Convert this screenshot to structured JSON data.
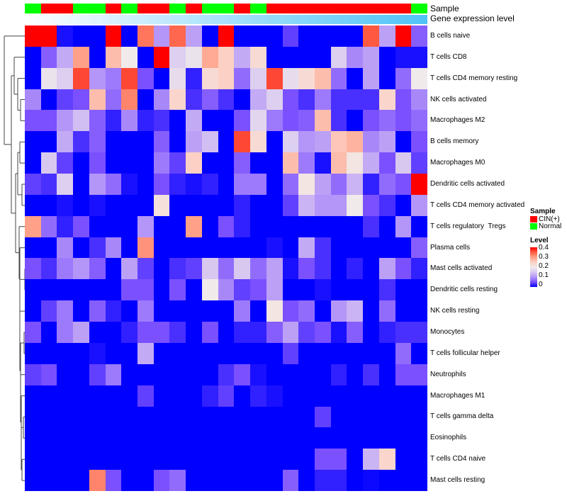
{
  "chart_data": {
    "type": "heatmap",
    "annotations": {
      "sample_label": "Sample",
      "gene_label": "Gene expression level",
      "sample": [
        "Normal",
        "CIN(+)",
        "CIN(+)",
        "Normal",
        "Normal",
        "CIN(+)",
        "Normal",
        "CIN(+)",
        "CIN(+)",
        "Normal",
        "CIN(+)",
        "Normal",
        "Normal",
        "CIN(+)",
        "Normal",
        "CIN(+)",
        "CIN(+)",
        "CIN(+)",
        "CIN(+)",
        "CIN(+)",
        "CIN(+)",
        "CIN(+)",
        "CIN(+)",
        "CIN(+)",
        "Normal"
      ]
    },
    "rows": [
      "B cells naive",
      "T cells CD8",
      "T cells CD4 memory resting",
      "NK cells activated",
      "Macrophages M2",
      "B cells memory",
      "Macrophages M0",
      "Dendritic cells activated",
      "T cells CD4 memory activated",
      "T cells regulatory  Tregs",
      "Plasma cells",
      "Mast cells activated",
      "Dendritic cells resting",
      "NK cells resting",
      "Monocytes",
      "T cells follicular helper",
      "Neutrophils",
      "Macrophages M1",
      "T cells gamma delta",
      "Eosinophils",
      "T cells CD4 naive",
      "Mast cells resting"
    ],
    "values": [
      [
        0.4,
        0.4,
        0.01,
        0,
        0,
        0.4,
        0,
        0.33,
        0.1,
        0.34,
        0.11,
        0,
        0.4,
        0,
        0,
        0,
        0.04,
        0,
        0,
        0,
        0,
        0.35,
        0.11,
        0.4,
        0.06
      ],
      [
        0,
        0.06,
        0.12,
        0.3,
        0,
        0.27,
        0.2,
        0,
        0.4,
        0.16,
        0.19,
        0.29,
        0.25,
        0.12,
        0.23,
        0,
        0,
        0,
        0,
        0.16,
        0.09,
        0.11,
        0,
        0.01,
        0.01
      ],
      [
        0,
        0.19,
        0.16,
        0.36,
        0.1,
        0.08,
        0.36,
        0.05,
        0,
        0.18,
        0.02,
        0.23,
        0.25,
        0.07,
        0.16,
        0.36,
        0.18,
        0.23,
        0.27,
        0.07,
        0,
        0.11,
        0,
        0.07,
        0.2
      ],
      [
        0.09,
        0,
        0.04,
        0.05,
        0.27,
        0.07,
        0.32,
        0,
        0.09,
        0.24,
        0.03,
        0.06,
        0.03,
        0,
        0.12,
        0.16,
        0.05,
        0.03,
        0.08,
        0.03,
        0.03,
        0.03,
        0.24,
        0.05,
        0.09
      ],
      [
        0.05,
        0.05,
        0.1,
        0.14,
        0.06,
        0.02,
        0.09,
        0.02,
        0.03,
        0,
        0.12,
        0,
        0,
        0.05,
        0.17,
        0.08,
        0.05,
        0.06,
        0.27,
        0.03,
        0,
        0.05,
        0.07,
        0.05,
        0.07
      ],
      [
        0,
        0,
        0.12,
        0.03,
        0.06,
        0,
        0,
        0,
        0.06,
        0,
        0.11,
        0.14,
        0,
        0.36,
        0.23,
        0,
        0.16,
        0.1,
        0.11,
        0.26,
        0.28,
        0.09,
        0.11,
        0,
        0.05
      ],
      [
        0,
        0.15,
        0.04,
        0,
        0.05,
        0,
        0,
        0,
        0.08,
        0.04,
        0.25,
        0,
        0,
        0.06,
        0,
        0,
        0.27,
        0.08,
        0.01,
        0.27,
        0.21,
        0.12,
        0.05,
        0.15,
        0.04
      ],
      [
        0.04,
        0.03,
        0.16,
        0,
        0.1,
        0.07,
        0.01,
        0,
        0.05,
        0.02,
        0.01,
        0.02,
        0,
        0.08,
        0.08,
        0,
        0.07,
        0.21,
        0.11,
        0.07,
        0.13,
        0.02,
        0.07,
        0.05,
        0.4
      ],
      [
        0,
        0,
        0.01,
        0,
        0.01,
        0,
        0,
        0,
        0.22,
        0,
        0,
        0,
        0,
        0.02,
        0,
        0,
        0.04,
        0.13,
        0.1,
        0.1,
        0.2,
        0.05,
        0.03,
        0,
        0.1
      ],
      [
        0.3,
        0.07,
        0.02,
        0.05,
        0,
        0,
        0,
        0.1,
        0,
        0,
        0.3,
        0,
        0.05,
        0.02,
        0,
        0,
        0,
        0,
        0,
        0,
        0,
        0.03,
        0,
        0.1,
        0
      ],
      [
        0,
        0,
        0.09,
        0,
        0.03,
        0.09,
        0,
        0.31,
        0,
        0,
        0,
        0,
        0,
        0,
        0,
        0.01,
        0,
        0.12,
        0.03,
        0,
        0,
        0,
        0,
        0,
        0.06
      ],
      [
        0.05,
        0.03,
        0.08,
        0.1,
        0.06,
        0,
        0.11,
        0.04,
        0,
        0.03,
        0.04,
        0.15,
        0.07,
        0.15,
        0.07,
        0.11,
        0.01,
        0.05,
        0.03,
        0,
        0.02,
        0,
        0.11,
        0.05,
        0.02
      ],
      [
        0,
        0,
        0,
        0,
        0,
        0,
        0.05,
        0.05,
        0,
        0.05,
        0,
        0.2,
        0.09,
        0.04,
        0.05,
        0.11,
        0,
        0,
        0.01,
        0,
        0,
        0,
        0.03,
        0,
        0
      ],
      [
        0,
        0.04,
        0.08,
        0,
        0.06,
        0.02,
        0,
        0.08,
        0,
        0,
        0,
        0,
        0,
        0.08,
        0,
        0.21,
        0.05,
        0.07,
        0,
        0.1,
        0.13,
        0,
        0.07,
        0,
        0
      ],
      [
        0.05,
        0,
        0.08,
        0.11,
        0,
        0,
        0.02,
        0.05,
        0.05,
        0.03,
        0,
        0.05,
        0,
        0.02,
        0.02,
        0.06,
        0.11,
        0.04,
        0.05,
        0.01,
        0.06,
        0,
        0.02,
        0.03,
        0.03
      ],
      [
        0,
        0,
        0,
        0,
        0.01,
        0,
        0,
        0.12,
        0,
        0,
        0,
        0,
        0,
        0,
        0,
        0,
        0.04,
        0,
        0,
        0,
        0,
        0,
        0,
        0.07,
        0
      ],
      [
        0.04,
        0.05,
        0,
        0,
        0.04,
        0.08,
        0,
        0,
        0,
        0,
        0,
        0,
        0.03,
        0.05,
        0.01,
        0,
        0,
        0,
        0,
        0.02,
        0,
        0.03,
        0,
        0.05,
        0.05
      ],
      [
        0,
        0,
        0,
        0,
        0,
        0,
        0,
        0.04,
        0,
        0,
        0,
        0.02,
        0.04,
        0,
        0.02,
        0.01,
        0,
        0,
        0,
        0,
        0,
        0,
        0,
        0,
        0
      ],
      [
        0,
        0,
        0,
        0,
        0,
        0,
        0,
        0,
        0,
        0,
        0,
        0,
        0,
        0,
        0,
        0,
        0,
        0,
        0.04,
        0,
        0,
        0,
        0,
        0,
        0
      ],
      [
        0,
        0,
        0,
        0,
        0,
        0,
        0,
        0,
        0,
        0,
        0,
        0,
        0,
        0,
        0,
        0,
        0,
        0,
        0,
        0,
        0,
        0,
        0,
        0,
        0
      ],
      [
        0,
        0,
        0,
        0,
        0,
        0,
        0,
        0,
        0,
        0,
        0,
        0,
        0,
        0,
        0,
        0,
        0,
        0,
        0.05,
        0.05,
        0,
        0.13,
        0.24,
        0,
        0
      ],
      [
        0,
        0,
        0,
        0,
        0.32,
        0.05,
        0,
        0,
        0.05,
        0.07,
        0,
        0,
        0,
        0,
        0,
        0,
        0.06,
        0,
        0.02,
        0.02,
        0,
        0.005,
        0,
        0,
        0
      ]
    ],
    "legend": {
      "sample_title": "Sample",
      "sample_items": [
        {
          "label": "CIN(+)",
          "color": "#ff0000"
        },
        {
          "label": "Normal",
          "color": "#00ff00"
        }
      ],
      "level_title": "Level",
      "level_ticks": [
        "0.4",
        "0.3",
        "0.2",
        "0.1",
        "0"
      ],
      "range": [
        0,
        0.4
      ],
      "colors": {
        "low": "#0000ff",
        "mid": "#ffffff",
        "high": "#ff0000"
      }
    },
    "placement": "legend right"
  }
}
